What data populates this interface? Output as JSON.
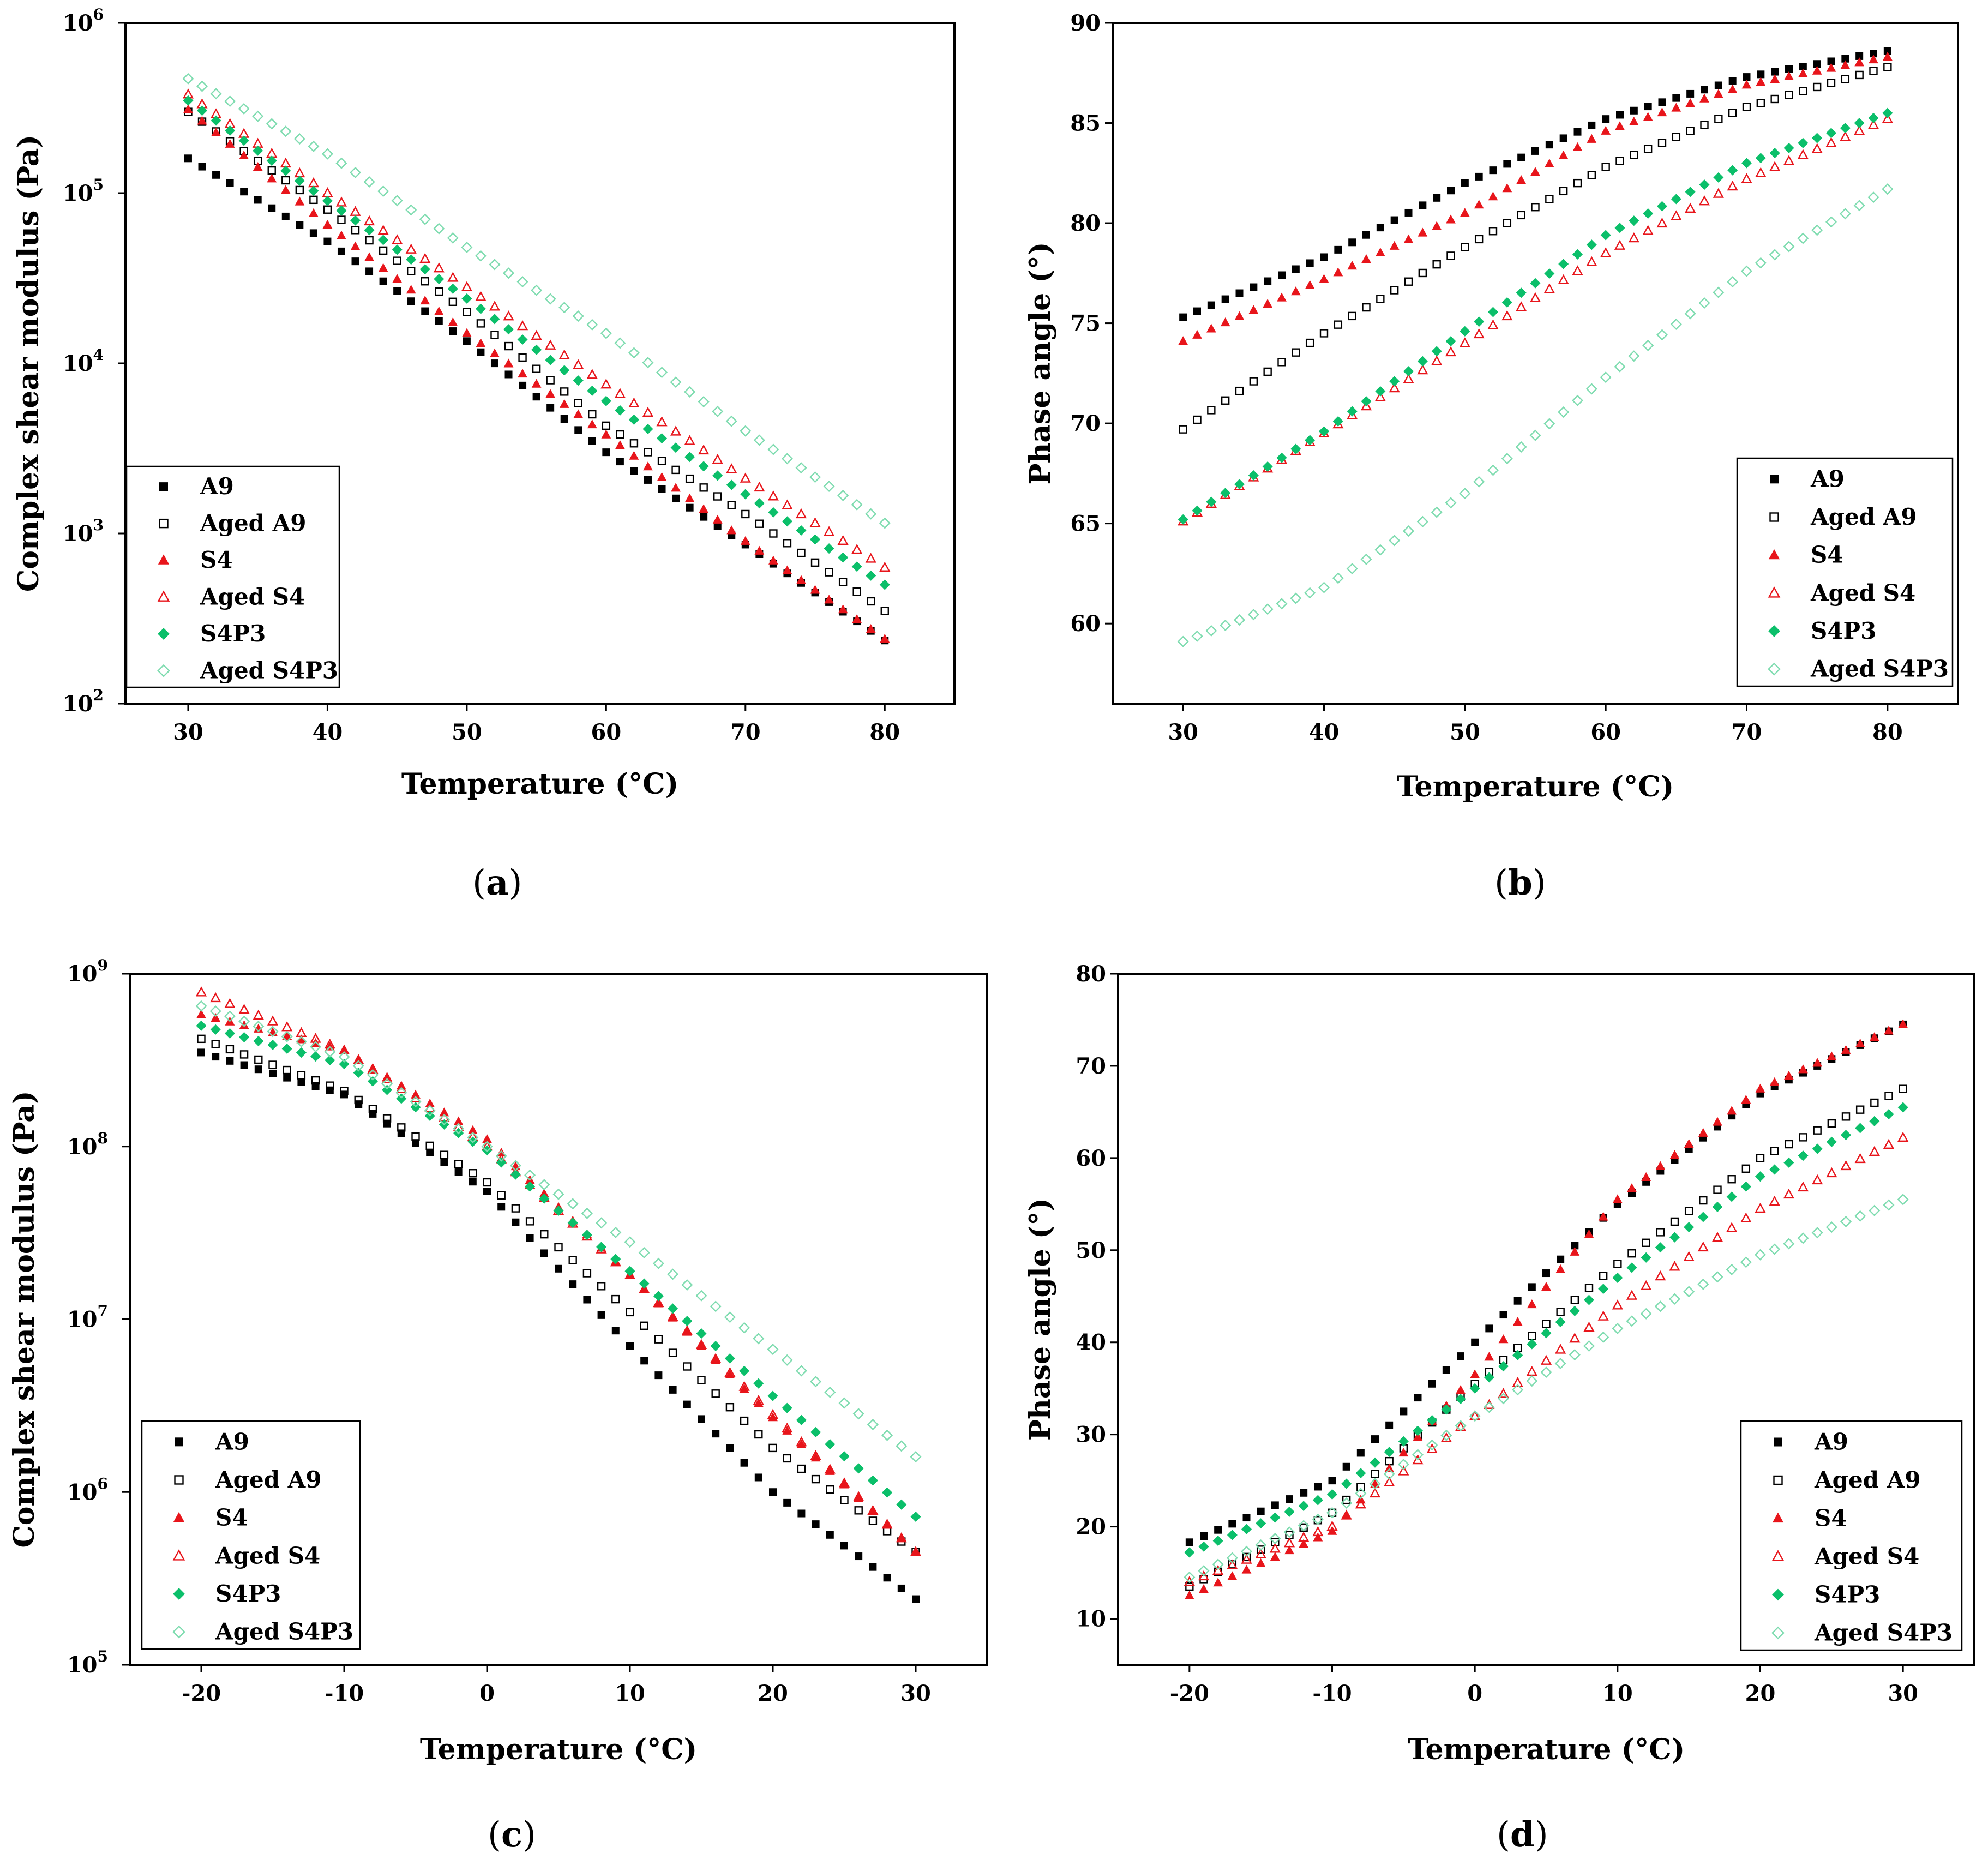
{
  "colors": {
    "A9": "#000000",
    "Aged A9": "#000000",
    "S4": "#e8151b",
    "Aged S4": "#e8151b",
    "S4P3": "#0bbf6a",
    "Aged S4P3": "#7fdcb0"
  },
  "marker_shapes": {
    "A9": "square-filled",
    "Aged A9": "square-open",
    "S4": "triangle-filled",
    "Aged S4": "triangle-open",
    "S4P3": "diamond-filled",
    "Aged S4P3": "diamond-open"
  },
  "chart_data": [
    {
      "id": "a",
      "caption_letter": "a",
      "type": "scatter",
      "xlabel": "Temperature (°C)",
      "ylabel": "Complex shear modulus (Pa)",
      "yscale": "log",
      "xlim": [
        25.5,
        85
      ],
      "ylim": [
        100,
        1000000
      ],
      "xticks": [
        30,
        40,
        50,
        60,
        70,
        80
      ],
      "yticks": [
        {
          "value": 100,
          "base": "10",
          "exp": "2"
        },
        {
          "value": 1000,
          "base": "10",
          "exp": "3"
        },
        {
          "value": 10000,
          "base": "10",
          "exp": "4"
        },
        {
          "value": 100000,
          "base": "10",
          "exp": "5"
        },
        {
          "value": 1000000,
          "base": "10",
          "exp": "6"
        }
      ],
      "legend": [
        "A9",
        "Aged A9",
        "S4",
        "Aged S4",
        "S4P3",
        "Aged S4P3"
      ],
      "legend_position": "bottom-left",
      "x": [
        30,
        80
      ],
      "series": [
        {
          "name": "A9",
          "points": [
            [
              30,
              160000
            ],
            [
              40,
              52000
            ],
            [
              50,
              13500
            ],
            [
              60,
              3000
            ],
            [
              70,
              860
            ],
            [
              80,
              235
            ]
          ]
        },
        {
          "name": "Aged A9",
          "points": [
            [
              30,
              300000
            ],
            [
              40,
              80000
            ],
            [
              50,
              20000
            ],
            [
              60,
              4300
            ],
            [
              70,
              1300
            ],
            [
              80,
              350
            ]
          ]
        },
        {
          "name": "S4",
          "points": [
            [
              30,
              310000
            ],
            [
              40,
              65000
            ],
            [
              50,
              15000
            ],
            [
              60,
              3800
            ],
            [
              70,
              900
            ],
            [
              80,
              240
            ]
          ]
        },
        {
          "name": "Aged S4",
          "points": [
            [
              30,
              380000
            ],
            [
              40,
              100000
            ],
            [
              50,
              28000
            ],
            [
              60,
              7500
            ],
            [
              70,
              2100
            ],
            [
              80,
              630
            ]
          ]
        },
        {
          "name": "S4P3",
          "points": [
            [
              30,
              350000
            ],
            [
              40,
              90000
            ],
            [
              50,
              24000
            ],
            [
              60,
              6000
            ],
            [
              70,
              1700
            ],
            [
              80,
              500
            ]
          ]
        },
        {
          "name": "Aged S4P3",
          "points": [
            [
              30,
              470000
            ],
            [
              40,
              170000
            ],
            [
              50,
              48000
            ],
            [
              60,
              15000
            ],
            [
              70,
              4000
            ],
            [
              80,
              1150
            ]
          ]
        }
      ]
    },
    {
      "id": "b",
      "caption_letter": "b",
      "type": "scatter",
      "xlabel": "Temperature (°C)",
      "ylabel": "Phase angle (°)",
      "yscale": "linear",
      "xlim": [
        25,
        85
      ],
      "ylim": [
        56,
        90
      ],
      "xticks": [
        30,
        40,
        50,
        60,
        70,
        80
      ],
      "yticks": [
        {
          "value": 60,
          "label": "60"
        },
        {
          "value": 65,
          "label": "65"
        },
        {
          "value": 70,
          "label": "70"
        },
        {
          "value": 75,
          "label": "75"
        },
        {
          "value": 80,
          "label": "80"
        },
        {
          "value": 85,
          "label": "85"
        },
        {
          "value": 90,
          "label": "90"
        }
      ],
      "legend": [
        "A9",
        "Aged A9",
        "S4",
        "Aged S4",
        "S4P3",
        "Aged S4P3"
      ],
      "legend_position": "bottom-right",
      "series": [
        {
          "name": "A9",
          "points": [
            [
              30,
              75.3
            ],
            [
              40,
              78.3
            ],
            [
              50,
              82.0
            ],
            [
              60,
              85.2
            ],
            [
              70,
              87.3
            ],
            [
              80,
              88.6
            ]
          ]
        },
        {
          "name": "Aged A9",
          "points": [
            [
              30,
              69.7
            ],
            [
              40,
              74.5
            ],
            [
              50,
              78.8
            ],
            [
              60,
              82.8
            ],
            [
              70,
              85.8
            ],
            [
              80,
              87.8
            ]
          ]
        },
        {
          "name": "S4",
          "points": [
            [
              30,
              74.1
            ],
            [
              40,
              77.2
            ],
            [
              50,
              80.5
            ],
            [
              60,
              84.6
            ],
            [
              70,
              86.9
            ],
            [
              80,
              88.3
            ]
          ]
        },
        {
          "name": "Aged S4",
          "points": [
            [
              30,
              65.1
            ],
            [
              40,
              69.5
            ],
            [
              50,
              74.0
            ],
            [
              60,
              78.5
            ],
            [
              70,
              82.2
            ],
            [
              80,
              85.2
            ]
          ]
        },
        {
          "name": "S4P3",
          "points": [
            [
              30,
              65.2
            ],
            [
              40,
              69.6
            ],
            [
              50,
              74.6
            ],
            [
              60,
              79.4
            ],
            [
              70,
              83.0
            ],
            [
              80,
              85.5
            ]
          ]
        },
        {
          "name": "Aged S4P3",
          "points": [
            [
              30,
              59.1
            ],
            [
              40,
              61.8
            ],
            [
              50,
              66.5
            ],
            [
              60,
              72.3
            ],
            [
              70,
              77.6
            ],
            [
              80,
              81.7
            ]
          ]
        }
      ]
    },
    {
      "id": "c",
      "caption_letter": "c",
      "type": "scatter",
      "xlabel": "Temperature (°C)",
      "ylabel": "Complex shear modulus (Pa)",
      "yscale": "log",
      "xlim": [
        -25,
        35
      ],
      "ylim": [
        100000,
        1000000000
      ],
      "xticks": [
        -20,
        -10,
        0,
        10,
        20,
        30
      ],
      "yticks": [
        {
          "value": 100000,
          "base": "10",
          "exp": "5"
        },
        {
          "value": 1000000,
          "base": "10",
          "exp": "6"
        },
        {
          "value": 10000000,
          "base": "10",
          "exp": "7"
        },
        {
          "value": 100000000,
          "base": "10",
          "exp": "8"
        },
        {
          "value": 1000000000,
          "base": "10",
          "exp": "9"
        }
      ],
      "legend": [
        "A9",
        "Aged A9",
        "S4",
        "Aged S4",
        "S4P3",
        "Aged S4P3"
      ],
      "legend_position": "bottom-left",
      "series": [
        {
          "name": "A9",
          "points": [
            [
              -20,
              350000000
            ],
            [
              -10,
              200000000
            ],
            [
              0,
              55000000
            ],
            [
              10,
              7000000
            ],
            [
              20,
              1000000
            ],
            [
              30,
              240000
            ]
          ]
        },
        {
          "name": "Aged A9",
          "points": [
            [
              -20,
              420000000
            ],
            [
              -10,
              210000000
            ],
            [
              0,
              62000000
            ],
            [
              10,
              11000000
            ],
            [
              20,
              1800000
            ],
            [
              30,
              450000
            ]
          ]
        },
        {
          "name": "S4",
          "points": [
            [
              -20,
              580000000
            ],
            [
              -10,
              360000000
            ],
            [
              0,
              110000000
            ],
            [
              10,
              18000000
            ],
            [
              20,
              2700000
            ],
            [
              30,
              450000
            ]
          ]
        },
        {
          "name": "Aged S4",
          "points": [
            [
              -20,
              780000000
            ],
            [
              -10,
              360000000
            ],
            [
              0,
              100000000
            ],
            [
              10,
              18000000
            ],
            [
              20,
              2800000
            ],
            [
              30,
              450000
            ]
          ]
        },
        {
          "name": "S4P3",
          "points": [
            [
              -20,
              500000000
            ],
            [
              -10,
              300000000
            ],
            [
              0,
              95000000
            ],
            [
              10,
              19000000
            ],
            [
              20,
              3600000
            ],
            [
              30,
              720000
            ]
          ]
        },
        {
          "name": "Aged S4P3",
          "points": [
            [
              -20,
              650000000
            ],
            [
              -10,
              330000000
            ],
            [
              0,
              100000000
            ],
            [
              10,
              28000000
            ],
            [
              20,
              6700000
            ],
            [
              30,
              1600000
            ]
          ]
        }
      ]
    },
    {
      "id": "d",
      "caption_letter": "d",
      "type": "scatter",
      "xlabel": "Temperature (°C)",
      "ylabel": "Phase angle (°)",
      "yscale": "linear",
      "xlim": [
        -25,
        35
      ],
      "ylim": [
        5,
        80
      ],
      "xticks": [
        -20,
        -10,
        0,
        10,
        20,
        30
      ],
      "yticks": [
        {
          "value": 10,
          "label": "10"
        },
        {
          "value": 20,
          "label": "20"
        },
        {
          "value": 30,
          "label": "30"
        },
        {
          "value": 40,
          "label": "40"
        },
        {
          "value": 50,
          "label": "50"
        },
        {
          "value": 60,
          "label": "60"
        },
        {
          "value": 70,
          "label": "70"
        },
        {
          "value": 80,
          "label": "80"
        }
      ],
      "legend": [
        "A9",
        "Aged A9",
        "S4",
        "Aged S4",
        "S4P3",
        "Aged S4P3"
      ],
      "legend_position": "bottom-right",
      "series": [
        {
          "name": "A9",
          "points": [
            [
              -20,
              18.3
            ],
            [
              -10,
              25.0
            ],
            [
              0,
              40.0
            ],
            [
              10,
              55.0
            ],
            [
              20,
              67.0
            ],
            [
              30,
              74.5
            ]
          ]
        },
        {
          "name": "Aged A9",
          "points": [
            [
              -20,
              13.5
            ],
            [
              -10,
              21.5
            ],
            [
              0,
              35.5
            ],
            [
              10,
              48.5
            ],
            [
              20,
              60.0
            ],
            [
              30,
              67.5
            ]
          ]
        },
        {
          "name": "S4",
          "points": [
            [
              -20,
              12.5
            ],
            [
              -10,
              19.5
            ],
            [
              0,
              36.5
            ],
            [
              10,
              55.5
            ],
            [
              20,
              67.5
            ],
            [
              30,
              74.5
            ]
          ]
        },
        {
          "name": "Aged S4",
          "points": [
            [
              -20,
              14.0
            ],
            [
              -10,
              20.0
            ],
            [
              0,
              32.0
            ],
            [
              10,
              44.0
            ],
            [
              20,
              54.5
            ],
            [
              30,
              62.2
            ]
          ]
        },
        {
          "name": "S4P3",
          "points": [
            [
              -20,
              17.2
            ],
            [
              -10,
              23.5
            ],
            [
              0,
              35.0
            ],
            [
              10,
              47.0
            ],
            [
              20,
              58.0
            ],
            [
              30,
              65.5
            ]
          ]
        },
        {
          "name": "Aged S4P3",
          "points": [
            [
              -20,
              14.5
            ],
            [
              -10,
              21.5
            ],
            [
              0,
              32.0
            ],
            [
              10,
              41.5
            ],
            [
              20,
              49.5
            ],
            [
              30,
              55.5
            ]
          ]
        }
      ]
    }
  ]
}
